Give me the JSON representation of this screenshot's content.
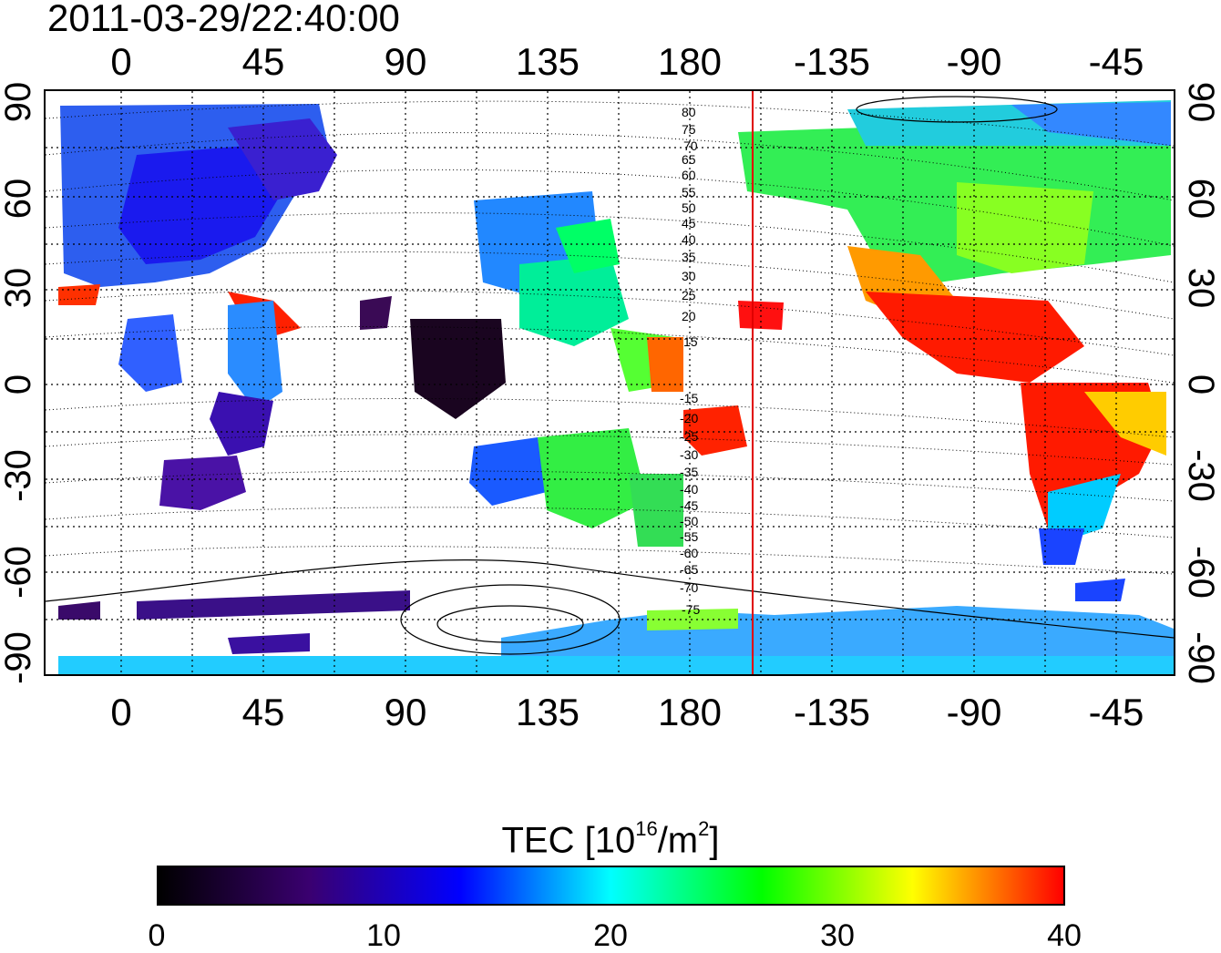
{
  "header": {
    "timestamp": "2011-03-29/22:40:00"
  },
  "map": {
    "projection": "equirectangular",
    "lon_ticks_top": [
      "0",
      "45",
      "90",
      "135",
      "180",
      "-135",
      "-90",
      "-45"
    ],
    "lon_ticks_bottom": [
      "0",
      "45",
      "90",
      "135",
      "180",
      "-135",
      "-90",
      "-45"
    ],
    "lat_ticks_left": [
      "90",
      "60",
      "30",
      "0",
      "-30",
      "-60",
      "-90"
    ],
    "lat_ticks_right": [
      "90",
      "60",
      "30",
      "0",
      "-30",
      "-60",
      "-90"
    ],
    "gridlines": "dotted",
    "marker_line_color": "#e00000",
    "contour_labels_north": [
      "80",
      "75",
      "70",
      "65",
      "60",
      "55",
      "50",
      "45",
      "40",
      "35",
      "30",
      "25",
      "20",
      "15"
    ],
    "contour_labels_south": [
      "-15",
      "-20",
      "-25",
      "-30",
      "-35",
      "-40",
      "-45",
      "-50",
      "-55",
      "-60",
      "-65",
      "-70",
      "-75"
    ]
  },
  "colorbar": {
    "title_prefix": "TEC  [10",
    "title_exp": "16",
    "title_unit": "/m",
    "title_exp2": "2",
    "title_suffix": "]",
    "ticks": [
      "0",
      "10",
      "20",
      "30",
      "40"
    ],
    "colormap": [
      "#000000",
      "#3a0070",
      "#0000ff",
      "#00ffff",
      "#00ff00",
      "#ffff00",
      "#ff0000"
    ]
  }
}
